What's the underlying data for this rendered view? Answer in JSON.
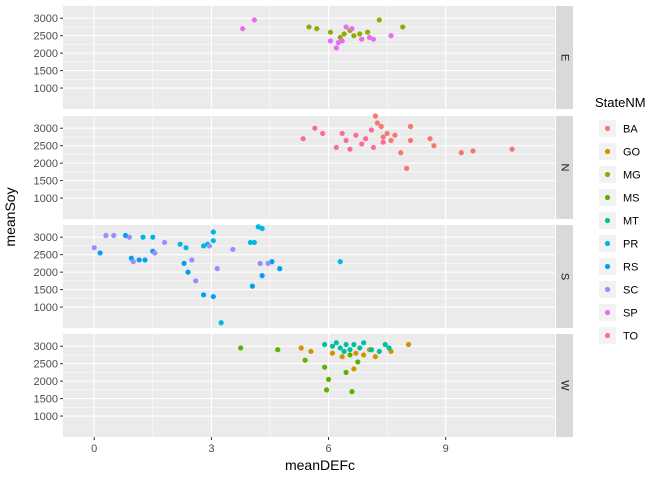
{
  "chart_data": {
    "type": "scatter",
    "xlabel": "meanDEFc",
    "ylabel": "meanSoy",
    "xlim": [
      -0.8,
      11.8
    ],
    "ylim": [
      400,
      3350
    ],
    "x_ticks": [
      0,
      3,
      6,
      9
    ],
    "y_ticks": [
      1000,
      1500,
      2000,
      2500,
      3000
    ],
    "facets": [
      "E",
      "N",
      "S",
      "W"
    ],
    "legend_title": "StateNM",
    "legend_position": "right",
    "grid": true,
    "series": [
      {
        "name": "BA",
        "color": "#F8766D",
        "facet": "N",
        "points": [
          [
            7.2,
            3350
          ],
          [
            7.25,
            3150
          ],
          [
            7.35,
            3050
          ],
          [
            7.5,
            2850
          ],
          [
            7.7,
            2800
          ],
          [
            7.4,
            2750
          ],
          [
            7.6,
            2650
          ],
          [
            8.1,
            3050
          ],
          [
            8.1,
            2650
          ],
          [
            8.6,
            2700
          ],
          [
            8.7,
            2500
          ],
          [
            9.4,
            2300
          ],
          [
            9.7,
            2350
          ],
          [
            10.7,
            2400
          ],
          [
            8.0,
            1850
          ],
          [
            7.85,
            2300
          ]
        ]
      },
      {
        "name": "GO",
        "color": "#D39200",
        "facet": "W",
        "points": [
          [
            5.3,
            2950
          ],
          [
            5.55,
            2850
          ],
          [
            6.1,
            2800
          ],
          [
            6.35,
            2700
          ],
          [
            6.7,
            2800
          ],
          [
            6.9,
            2750
          ],
          [
            7.2,
            2700
          ],
          [
            7.6,
            2850
          ],
          [
            7.05,
            2900
          ],
          [
            6.65,
            2350
          ],
          [
            8.05,
            3050
          ]
        ]
      },
      {
        "name": "MG",
        "color": "#93AA00",
        "facet": "E",
        "points": [
          [
            5.5,
            2750
          ],
          [
            5.7,
            2700
          ],
          [
            6.05,
            2600
          ],
          [
            6.3,
            2450
          ],
          [
            6.4,
            2550
          ],
          [
            6.55,
            2650
          ],
          [
            6.65,
            2500
          ],
          [
            6.8,
            2550
          ],
          [
            7.0,
            2600
          ],
          [
            7.3,
            2950
          ],
          [
            7.9,
            2750
          ]
        ]
      },
      {
        "name": "MS",
        "color": "#5BB300",
        "facet": "W",
        "points": [
          [
            3.75,
            2950
          ],
          [
            4.7,
            2900
          ],
          [
            5.4,
            2600
          ],
          [
            5.9,
            2400
          ],
          [
            6.0,
            2050
          ],
          [
            5.95,
            1750
          ],
          [
            6.45,
            2250
          ],
          [
            6.6,
            1700
          ],
          [
            6.75,
            2550
          ],
          [
            6.55,
            2750
          ]
        ]
      },
      {
        "name": "MT",
        "color": "#00C19F",
        "facet": "W",
        "points": [
          [
            5.9,
            3050
          ],
          [
            6.1,
            3000
          ],
          [
            6.2,
            3100
          ],
          [
            6.3,
            2950
          ],
          [
            6.45,
            3050
          ],
          [
            6.55,
            2900
          ],
          [
            6.65,
            3050
          ],
          [
            6.8,
            2950
          ],
          [
            6.9,
            3100
          ],
          [
            7.1,
            2900
          ],
          [
            7.3,
            2850
          ],
          [
            7.45,
            3050
          ],
          [
            7.55,
            2950
          ],
          [
            6.4,
            2850
          ]
        ]
      },
      {
        "name": "PR",
        "color": "#00B9E3",
        "facet": "S",
        "points": [
          [
            1.25,
            3000
          ],
          [
            1.5,
            3000
          ],
          [
            2.2,
            2800
          ],
          [
            2.35,
            2700
          ],
          [
            2.8,
            2750
          ],
          [
            2.9,
            2800
          ],
          [
            3.05,
            2900
          ],
          [
            3.05,
            3150
          ],
          [
            4.0,
            2850
          ],
          [
            4.2,
            3300
          ],
          [
            4.3,
            3250
          ],
          [
            4.1,
            2850
          ],
          [
            6.3,
            2300
          ],
          [
            3.25,
            550
          ]
        ]
      },
      {
        "name": "RS",
        "color": "#00A0F5",
        "facet": "S",
        "points": [
          [
            0.15,
            2550
          ],
          [
            0.8,
            3050
          ],
          [
            0.95,
            2400
          ],
          [
            1.15,
            2350
          ],
          [
            1.3,
            2350
          ],
          [
            1.5,
            2600
          ],
          [
            2.3,
            2250
          ],
          [
            2.4,
            2000
          ],
          [
            2.8,
            1350
          ],
          [
            3.05,
            1300
          ],
          [
            4.05,
            1600
          ],
          [
            4.3,
            1900
          ],
          [
            4.55,
            2300
          ],
          [
            4.75,
            2100
          ]
        ]
      },
      {
        "name": "SC",
        "color": "#9590FF",
        "facet": "S",
        "points": [
          [
            0.0,
            2700
          ],
          [
            0.3,
            3050
          ],
          [
            0.5,
            3050
          ],
          [
            0.9,
            3000
          ],
          [
            1.0,
            2300
          ],
          [
            1.8,
            2850
          ],
          [
            2.5,
            2350
          ],
          [
            2.6,
            1750
          ],
          [
            3.15,
            2100
          ],
          [
            3.55,
            2650
          ],
          [
            4.25,
            2250
          ],
          [
            4.45,
            2250
          ],
          [
            1.55,
            2550
          ],
          [
            2.95,
            2750
          ]
        ]
      },
      {
        "name": "SP",
        "color": "#E76BF3",
        "facet": "E",
        "points": [
          [
            3.8,
            2700
          ],
          [
            4.1,
            2950
          ],
          [
            6.05,
            2350
          ],
          [
            6.2,
            2150
          ],
          [
            6.35,
            2350
          ],
          [
            6.45,
            2750
          ],
          [
            6.6,
            2700
          ],
          [
            6.85,
            2400
          ],
          [
            7.05,
            2450
          ],
          [
            7.15,
            2400
          ],
          [
            7.6,
            2500
          ],
          [
            6.25,
            2300
          ]
        ]
      },
      {
        "name": "TO",
        "color": "#FF67A4",
        "facet": "N",
        "points": [
          [
            5.35,
            2700
          ],
          [
            5.65,
            3000
          ],
          [
            5.85,
            2850
          ],
          [
            6.2,
            2450
          ],
          [
            6.35,
            2850
          ],
          [
            6.45,
            2650
          ],
          [
            6.55,
            2400
          ],
          [
            6.7,
            2800
          ],
          [
            6.85,
            2550
          ],
          [
            6.95,
            2700
          ],
          [
            7.1,
            2950
          ],
          [
            7.15,
            2450
          ],
          [
            7.4,
            2600
          ]
        ]
      }
    ]
  }
}
